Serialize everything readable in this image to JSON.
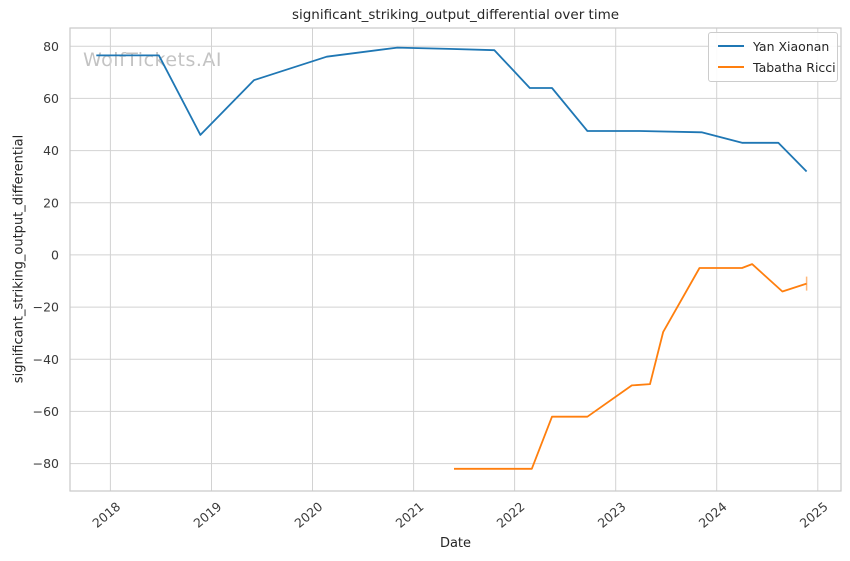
{
  "watermark": "WolfTickets.AI",
  "colors": {
    "series_blue": "#1f77b4",
    "series_orange": "#ff7f0e",
    "grid": "#d2d2d2",
    "spine": "#c9c9c9",
    "tick_text": "#3a3a3a",
    "text": "#262626",
    "watermark": "#9b9b9b",
    "background": "#ffffff"
  },
  "chart_data": {
    "type": "line",
    "title": "significant_striking_output_differential over time",
    "xlabel": "Date",
    "ylabel": "significant_striking_output_differential",
    "grid": true,
    "legend_position": "upper right",
    "xlim": [
      2017.6,
      2025.23
    ],
    "ylim": [
      -90.5,
      87
    ],
    "x_ticks": [
      2018,
      2019,
      2020,
      2021,
      2022,
      2023,
      2024,
      2025
    ],
    "x_tick_labels": [
      "2018",
      "2019",
      "2020",
      "2021",
      "2022",
      "2023",
      "2024",
      "2025"
    ],
    "y_ticks": [
      -80,
      -60,
      -40,
      -20,
      0,
      20,
      40,
      60,
      80
    ],
    "x_tick_rotation_deg": -40,
    "series": [
      {
        "name": "Yan Xiaonan",
        "color": "#1f77b4",
        "x": [
          2017.86,
          2018.48,
          2018.89,
          2019.42,
          2020.14,
          2020.84,
          2021.35,
          2021.8,
          2022.15,
          2022.37,
          2022.72,
          2023.24,
          2023.85,
          2024.25,
          2024.61,
          2024.89
        ],
        "y": [
          76.5,
          76.5,
          46,
          67,
          76,
          79.5,
          79,
          78.5,
          64,
          64,
          47.5,
          47.5,
          47,
          43,
          43,
          32
        ],
        "end_tick": false
      },
      {
        "name": "Tabatha Ricci",
        "color": "#ff7f0e",
        "x": [
          2021.4,
          2022.17,
          2022.37,
          2022.72,
          2023.16,
          2023.34,
          2023.47,
          2023.83,
          2024.25,
          2024.35,
          2024.65,
          2024.89
        ],
        "y": [
          -82,
          -82,
          -62,
          -62,
          -50,
          -49.5,
          -29.5,
          -5,
          -5,
          -3.5,
          -14,
          -11
        ],
        "end_tick": true
      }
    ]
  }
}
